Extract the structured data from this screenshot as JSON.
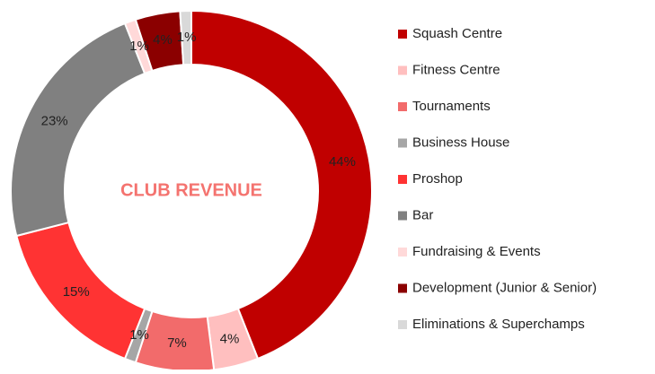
{
  "chart_data": {
    "type": "donut",
    "title": "CLUB REVENUE",
    "categories": [
      "Squash Centre",
      "Fitness Centre",
      "Tournaments",
      "Business House",
      "Proshop",
      "Bar",
      "Fundraising & Events",
      "Development (Junior & Senior)",
      "Eliminations & Superchamps"
    ],
    "values": [
      44,
      4,
      7,
      1,
      15,
      23,
      1,
      4,
      1
    ],
    "value_labels": [
      "44%",
      "4%",
      "7%",
      "1%",
      "15%",
      "23%",
      "1%",
      "4%",
      "1%"
    ],
    "colors": [
      "#c00000",
      "#ffbfbf",
      "#f26b6b",
      "#a6a6a6",
      "#ff3333",
      "#808080",
      "#ffd9d9",
      "#8b0000",
      "#d9d9d9"
    ],
    "legend": "right"
  }
}
